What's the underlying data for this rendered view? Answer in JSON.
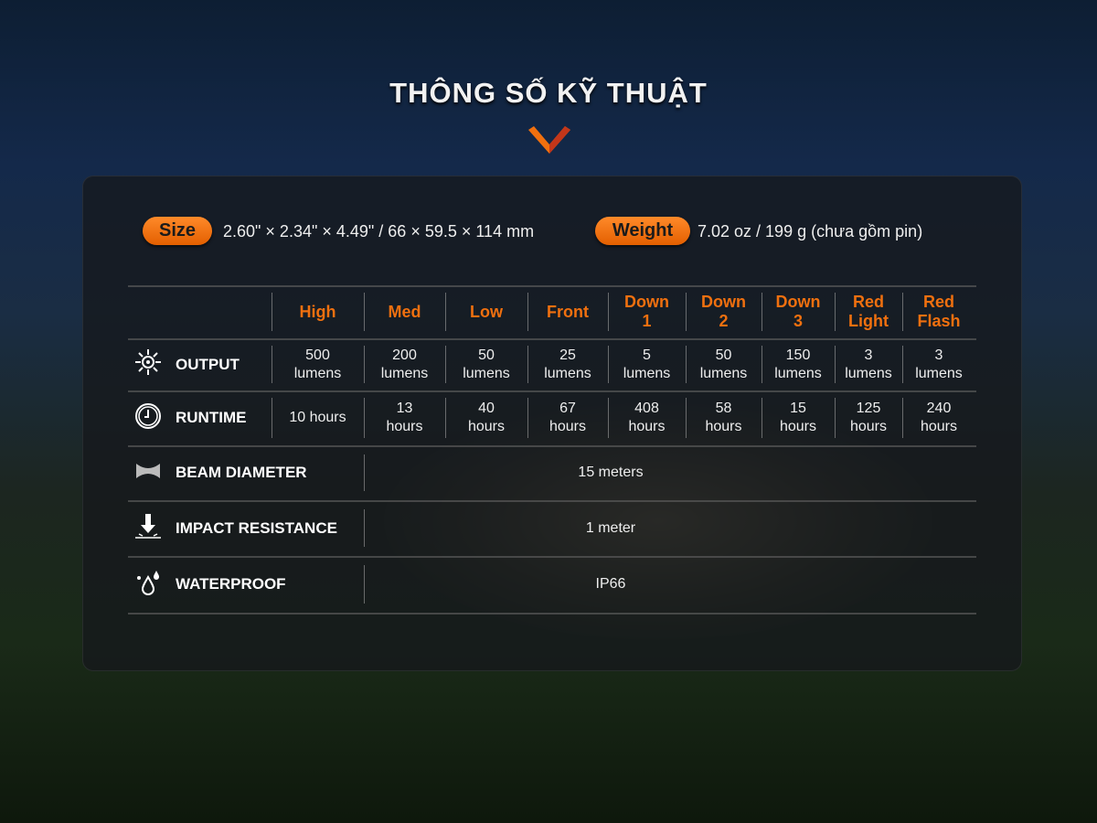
{
  "title": "THÔNG SỐ KỸ THUẬT",
  "accent": "#f0700f",
  "size": {
    "label": "Size",
    "value": "2.60\" × 2.34\" × 4.49\" / 66 × 59.5 × 114 mm"
  },
  "weight": {
    "label": "Weight",
    "value": "7.02 oz / 199 g (chưa gồm pin)"
  },
  "modes": [
    "High",
    "Med",
    "Low",
    "Front",
    "Down 1",
    "Down 2",
    "Down 3",
    "Red Light",
    "Red Flash"
  ],
  "output": {
    "label": "OUTPUT",
    "icon": "sun-icon",
    "values": [
      "500 lumens",
      "200 lumens",
      "50 lumens",
      "25 lumens",
      "5 lumens",
      "50 lumens",
      "150 lumens",
      "3 lumens",
      "3 lumens"
    ]
  },
  "runtime": {
    "label": "RUNTIME",
    "icon": "clock-icon",
    "values": [
      "10 hours",
      "13 hours",
      "40 hours",
      "67 hours",
      "408 hours",
      "58 hours",
      "15 hours",
      "125 hours",
      "240 hours"
    ]
  },
  "beam": {
    "label": "BEAM DIAMETER",
    "icon": "beam-icon",
    "value": "15 meters"
  },
  "impact": {
    "label": "IMPACT RESISTANCE",
    "icon": "impact-arrow-icon",
    "value": "1 meter"
  },
  "waterproof": {
    "label": "WATERPROOF",
    "icon": "water-drops-icon",
    "value": "IP66"
  }
}
